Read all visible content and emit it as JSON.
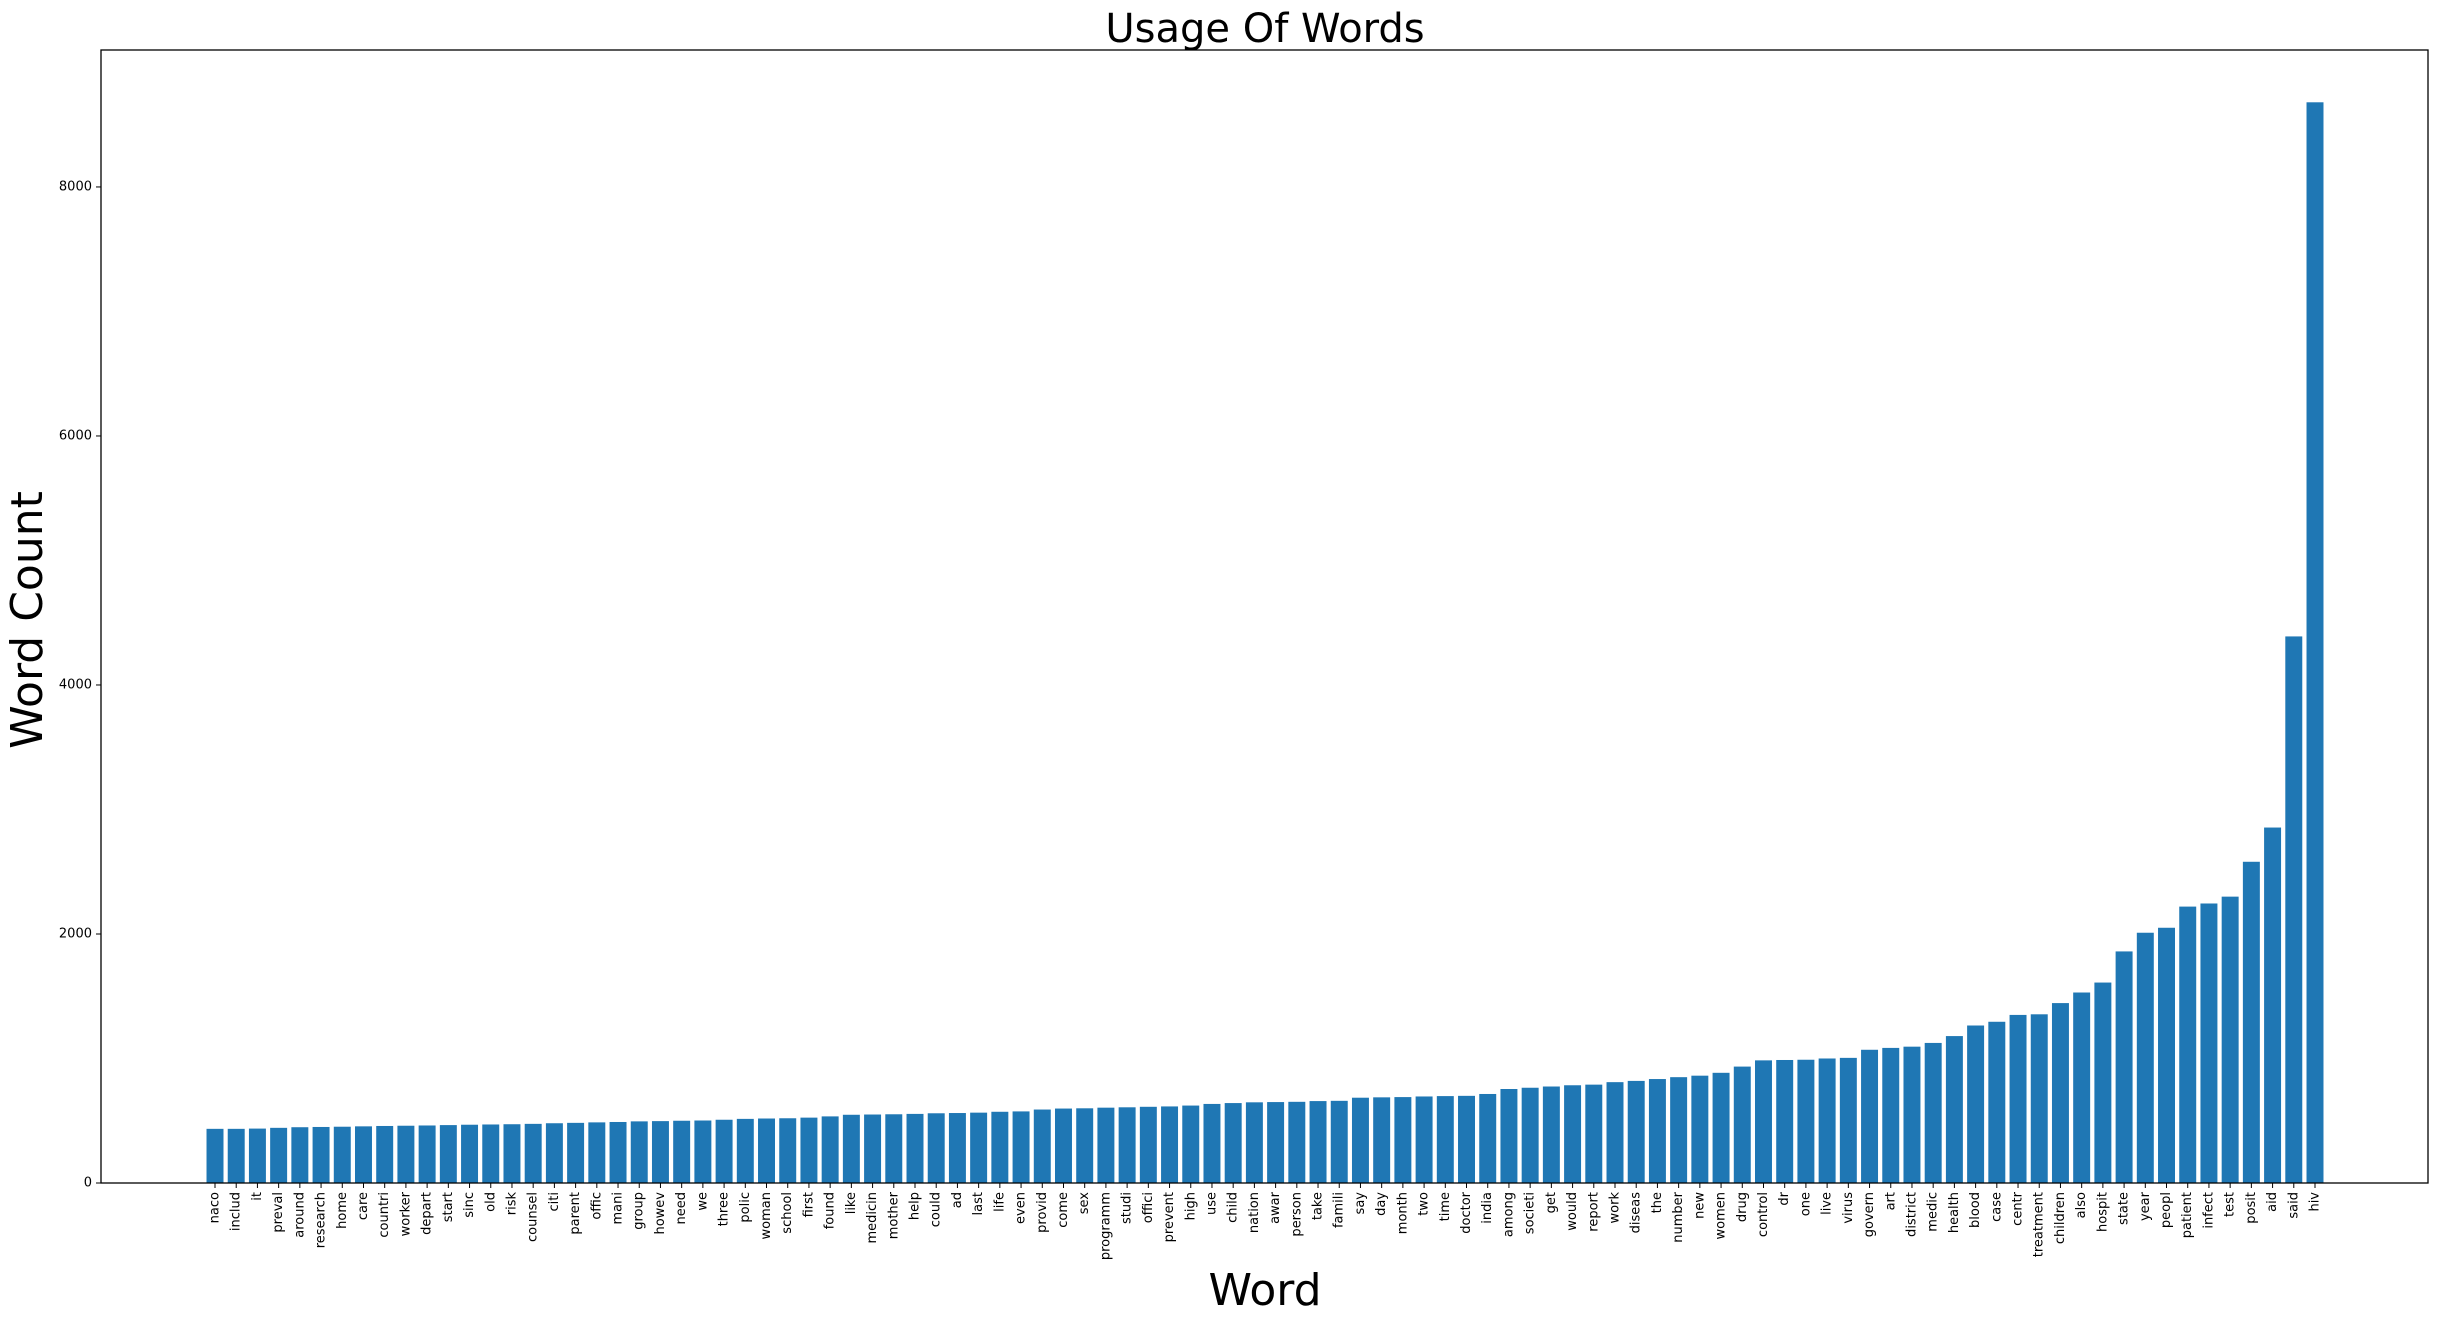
{
  "chart_data": {
    "type": "bar",
    "title": "Usage Of Words",
    "xlabel": "Word",
    "ylabel": "Word Count",
    "ylim": [
      0,
      9100
    ],
    "yticks": [
      0,
      2000,
      4000,
      6000,
      8000
    ],
    "grid": false,
    "color": "#1f77b4",
    "categories": [
      "naco",
      "includ",
      "it",
      "preval",
      "around",
      "research",
      "home",
      "care",
      "countri",
      "worker",
      "depart",
      "start",
      "sinc",
      "old",
      "risk",
      "counsel",
      "citi",
      "parent",
      "offic",
      "mani",
      "group",
      "howev",
      "need",
      "we",
      "three",
      "polic",
      "woman",
      "school",
      "first",
      "found",
      "like",
      "medicin",
      "mother",
      "help",
      "could",
      "ad",
      "last",
      "life",
      "even",
      "provid",
      "come",
      "sex",
      "programm",
      "studi",
      "offici",
      "prevent",
      "high",
      "use",
      "child",
      "nation",
      "awar",
      "person",
      "take",
      "famili",
      "say",
      "day",
      "month",
      "two",
      "time",
      "doctor",
      "india",
      "among",
      "societi",
      "get",
      "would",
      "report",
      "work",
      "diseas",
      "the",
      "number",
      "new",
      "women",
      "drug",
      "control",
      "dr",
      "one",
      "live",
      "virus",
      "govern",
      "art",
      "district",
      "medic",
      "health",
      "blood",
      "case",
      "centr",
      "treatment",
      "children",
      "also",
      "hospit",
      "state",
      "year",
      "peopl",
      "patient",
      "infect",
      "test",
      "posit",
      "aid",
      "said",
      "hiv"
    ],
    "values": [
      435,
      435,
      437,
      443,
      448,
      450,
      452,
      455,
      458,
      460,
      462,
      465,
      468,
      470,
      472,
      475,
      480,
      483,
      487,
      490,
      495,
      497,
      500,
      502,
      508,
      515,
      518,
      520,
      525,
      535,
      548,
      550,
      552,
      555,
      560,
      562,
      565,
      572,
      575,
      590,
      598,
      600,
      605,
      608,
      612,
      615,
      622,
      635,
      642,
      648,
      650,
      652,
      658,
      660,
      685,
      688,
      690,
      695,
      698,
      700,
      715,
      755,
      765,
      775,
      785,
      790,
      810,
      820,
      835,
      850,
      862,
      885,
      935,
      985,
      988,
      990,
      1000,
      1005,
      1070,
      1085,
      1095,
      1125,
      1180,
      1265,
      1295,
      1350,
      1355,
      1445,
      1530,
      1610,
      1860,
      2010,
      2050,
      2220,
      2245,
      2300,
      2580,
      2855,
      4390,
      8680
    ]
  }
}
